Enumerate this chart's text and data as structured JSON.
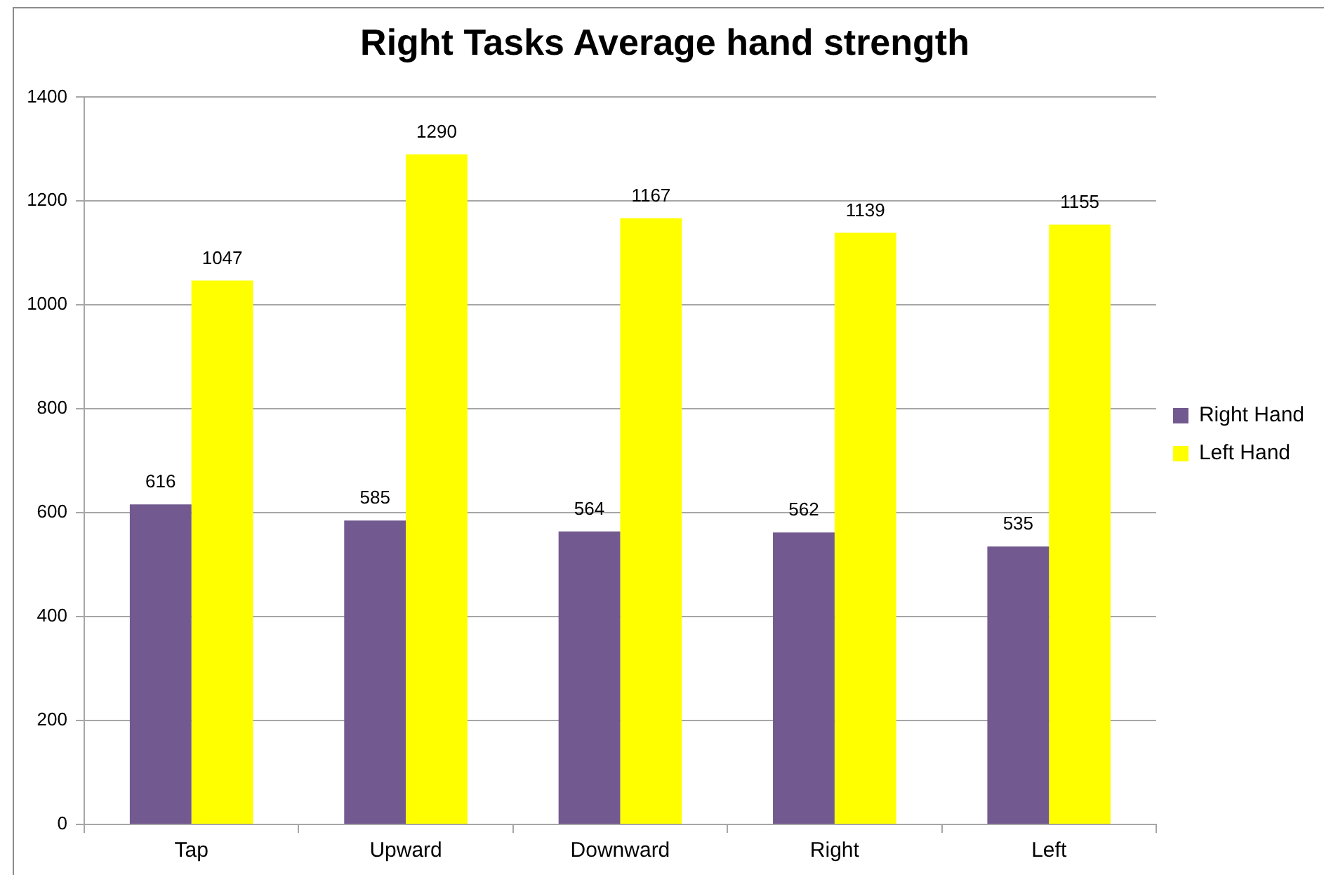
{
  "chart_data": {
    "type": "bar",
    "title": "Right Tasks Average hand strength",
    "categories": [
      "Tap",
      "Upward",
      "Downward",
      "Right",
      "Left"
    ],
    "series": [
      {
        "name": "Right Hand",
        "color": "#725a90",
        "values": [
          616,
          585,
          564,
          562,
          535
        ]
      },
      {
        "name": "Left Hand",
        "color": "#ffff00",
        "values": [
          1047,
          1290,
          1167,
          1139,
          1155
        ]
      }
    ],
    "ylim": [
      0,
      1400
    ],
    "yticks": [
      0,
      200,
      400,
      600,
      800,
      1000,
      1200,
      1400
    ],
    "grid": "y",
    "legend": "right",
    "data_labels": true
  }
}
